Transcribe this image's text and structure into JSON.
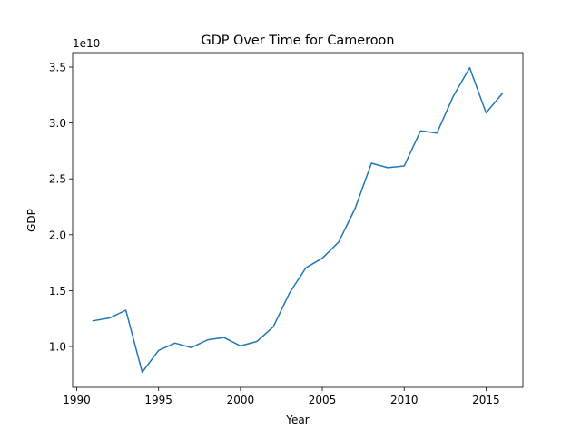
{
  "chart_data": {
    "type": "line",
    "title": "GDP Over Time for Cameroon",
    "xlabel": "Year",
    "ylabel": "GDP",
    "y_offset_label": "1e10",
    "y_scale_multiplier": 10000000000,
    "xlim": [
      1989.75,
      2017.25
    ],
    "ylim": [
      0.635,
      3.63
    ],
    "x_ticks": [
      1990,
      1995,
      2000,
      2005,
      2010,
      2015
    ],
    "x_tick_labels": [
      "1990",
      "1995",
      "2000",
      "2005",
      "2010",
      "2015"
    ],
    "y_ticks": [
      1.0,
      1.5,
      2.0,
      2.5,
      3.0,
      3.5
    ],
    "y_tick_labels": [
      "1.0",
      "1.5",
      "2.0",
      "2.5",
      "3.0",
      "3.5"
    ],
    "grid": false,
    "series": [
      {
        "color": "#1f77b4",
        "x": [
          1991,
          1992,
          1993,
          1994,
          1995,
          1996,
          1997,
          1998,
          1999,
          2000,
          2001,
          2002,
          2003,
          2004,
          2005,
          2006,
          2007,
          2008,
          2009,
          2010,
          2011,
          2012,
          2013,
          2014,
          2015,
          2016
        ],
        "y": [
          1.23,
          1.255,
          1.325,
          0.77,
          0.965,
          1.03,
          0.99,
          1.06,
          1.08,
          1.005,
          1.045,
          1.175,
          1.48,
          1.705,
          1.79,
          1.935,
          2.235,
          2.64,
          2.6,
          2.615,
          2.93,
          2.91,
          3.24,
          3.495,
          3.09,
          3.265
        ]
      }
    ]
  }
}
